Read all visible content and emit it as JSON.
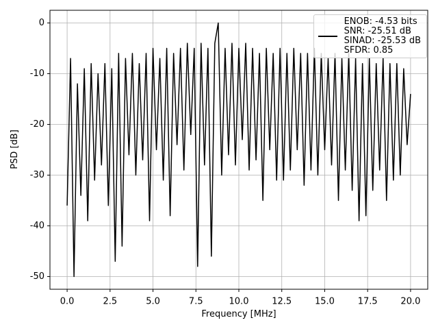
{
  "chart_data": {
    "type": "line",
    "xlabel": "Frequency [MHz]",
    "ylabel": "PSD [dB]",
    "x": [
      0,
      0.2,
      0.4,
      0.6,
      0.8,
      1,
      1.2,
      1.4,
      1.6,
      1.8,
      2,
      2.2,
      2.4,
      2.6,
      2.8,
      3,
      3.2,
      3.4,
      3.6,
      3.8,
      4,
      4.2,
      4.4,
      4.6,
      4.8,
      5,
      5.2,
      5.4,
      5.6,
      5.8,
      6,
      6.2,
      6.4,
      6.6,
      6.8,
      7,
      7.2,
      7.4,
      7.6,
      7.8,
      8,
      8.2,
      8.4,
      8.6,
      8.8,
      9,
      9.2,
      9.4,
      9.6,
      9.8,
      10,
      10.2,
      10.4,
      10.6,
      10.8,
      11,
      11.2,
      11.4,
      11.6,
      11.8,
      12,
      12.2,
      12.4,
      12.6,
      12.8,
      13,
      13.2,
      13.4,
      13.6,
      13.8,
      14,
      14.2,
      14.4,
      14.6,
      14.8,
      15,
      15.2,
      15.4,
      15.6,
      15.8,
      16,
      16.2,
      16.4,
      16.6,
      16.8,
      17,
      17.2,
      17.4,
      17.6,
      17.8,
      18,
      18.2,
      18.4,
      18.6,
      18.8,
      19,
      19.2,
      19.4,
      19.6,
      19.8,
      20
    ],
    "series": [
      {
        "name": "ENOB: -4.53 bits\nSNR: -25.51 dB\nSINAD: -25.53 dB\nSFDR: 0.85",
        "color": "#000000",
        "values": [
          -36,
          -7,
          -50,
          -12,
          -34,
          -9,
          -39,
          -8,
          -31,
          -10,
          -28,
          -8,
          -36,
          -9,
          -47,
          -6,
          -44,
          -7,
          -26,
          -6,
          -30,
          -8,
          -27,
          -6,
          -39,
          -5,
          -25,
          -7,
          -31,
          -5,
          -38,
          -6,
          -24,
          -5,
          -29,
          -4,
          -22,
          -5,
          -48,
          -4,
          -28,
          -5,
          -46,
          -4,
          0,
          -30,
          -5,
          -26,
          -4,
          -28,
          -5,
          -23,
          -4,
          -29,
          -5,
          -27,
          -6,
          -35,
          -5,
          -25,
          -6,
          -31,
          -5,
          -31,
          -6,
          -29,
          -5,
          -25,
          -6,
          -32,
          -6,
          -29,
          -5,
          -30,
          -6,
          -25,
          -7,
          -28,
          -6,
          -35,
          -7,
          -29,
          -6,
          -33,
          -7,
          -39,
          -8,
          -38,
          -7,
          -33,
          -8,
          -29,
          -7,
          -35,
          -8,
          -31,
          -8,
          -30,
          -9,
          -24,
          -14
        ]
      }
    ],
    "xlim": [
      -1,
      21
    ],
    "xticks": [
      {
        "value": 0,
        "label": "0.0"
      },
      {
        "value": 2.5,
        "label": "2.5"
      },
      {
        "value": 5,
        "label": "5.0"
      },
      {
        "value": 7.5,
        "label": "7.5"
      },
      {
        "value": 10,
        "label": "10.0"
      },
      {
        "value": 12.5,
        "label": "12.5"
      },
      {
        "value": 15,
        "label": "15.0"
      },
      {
        "value": 17.5,
        "label": "17.5"
      },
      {
        "value": 20,
        "label": "20.0"
      }
    ],
    "ylim": [
      -52.5,
      2.5
    ],
    "yticks": [
      -50,
      -40,
      -30,
      -20,
      -10,
      0
    ],
    "grid": true,
    "legend": "upper right"
  }
}
